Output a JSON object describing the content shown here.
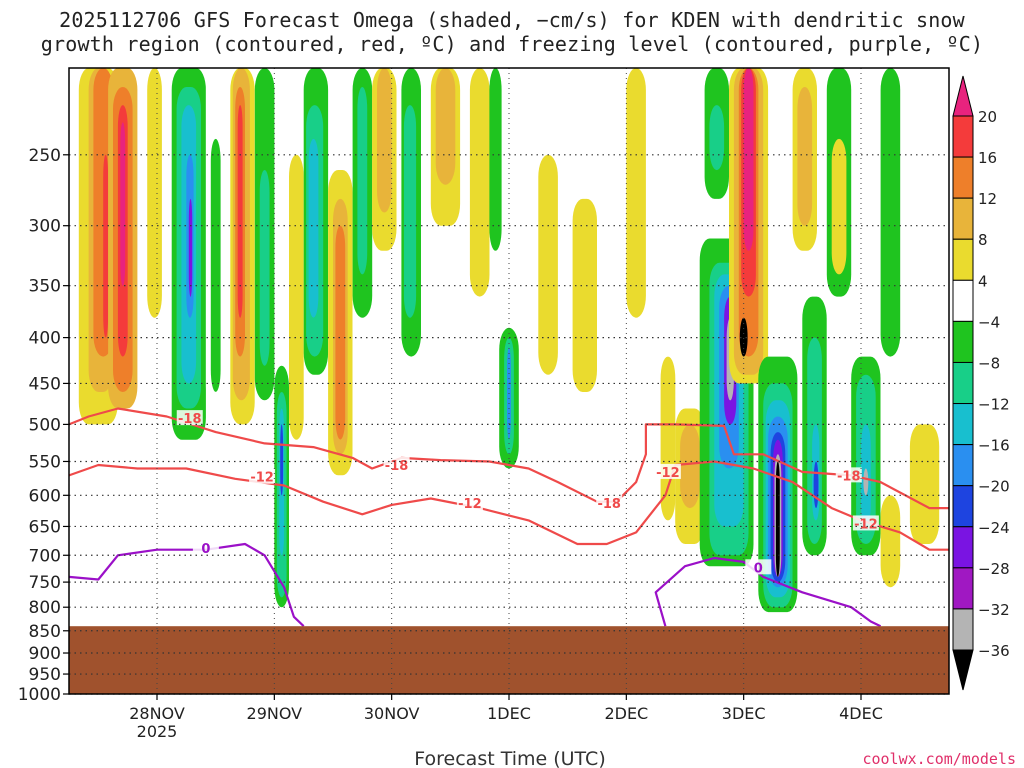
{
  "header": {
    "title_line_1": "2025112706 GFS Forecast Omega (shaded, −cm/s) for KDEN with dendritic snow",
    "title_line_2": "growth region (contoured, red, ºC) and freezing level (contoured, purple, ºC)"
  },
  "footer": {
    "xlabel": "Forecast Time (UTC)",
    "credit": "coolwx.com/models"
  },
  "colors": {
    "ground": "#a0522d",
    "dgz_contour": "#ef4a4a",
    "freezing_contour": "#9b10c8",
    "frame": "#000000"
  },
  "chart_data": {
    "type": "heatmap",
    "title": "2025112706 GFS Forecast Omega (shaded, −cm/s) for KDEN with dendritic snow growth region (contoured, red, ºC) and freezing level (contoured, purple, ºC)",
    "xlabel": "Forecast Time (UTC)",
    "ylabel": "",
    "y_scale": "log-pressure",
    "y_reversed": true,
    "ylim": [
      1000,
      200
    ],
    "xlim": [
      0,
      180
    ],
    "grid": true,
    "y_ticks": [
      "250",
      "300",
      "350",
      "400",
      "450",
      "500",
      "550",
      "600",
      "650",
      "700",
      "750",
      "800",
      "850",
      "900",
      "950",
      "1000"
    ],
    "x_ticks": [
      {
        "x": 18,
        "label": "28NOV",
        "sublabel": "2025"
      },
      {
        "x": 42,
        "label": "29NOV",
        "sublabel": ""
      },
      {
        "x": 66,
        "label": "30NOV",
        "sublabel": ""
      },
      {
        "x": 90,
        "label": "1DEC",
        "sublabel": ""
      },
      {
        "x": 114,
        "label": "2DEC",
        "sublabel": ""
      },
      {
        "x": 138,
        "label": "3DEC",
        "sublabel": ""
      },
      {
        "x": 162,
        "label": "4DEC",
        "sublabel": ""
      }
    ],
    "surface_pressure": 840,
    "colorbar": {
      "labels": [
        "20",
        "16",
        "12",
        "8",
        "4",
        "−4",
        "−8",
        "−12",
        "−16",
        "−20",
        "−24",
        "−28",
        "−32",
        "−36"
      ],
      "colors": [
        "#e8237e",
        "#f43b3b",
        "#ee7f2a",
        "#e8b43a",
        "#eadb2e",
        "#ffffff",
        "#1fc41f",
        "#18cf88",
        "#18bfcf",
        "#2a8ff0",
        "#1e44e0",
        "#7a14e2",
        "#a018c2",
        "#b4b4b4",
        "#000000"
      ]
    },
    "omega_cells": [
      {
        "x0": 2,
        "x1": 10,
        "p0": 200,
        "p1": 500,
        "cls": "4"
      },
      {
        "x0": 4,
        "x1": 9,
        "p0": 200,
        "p1": 460,
        "cls": "8"
      },
      {
        "x0": 5,
        "x1": 9,
        "p0": 200,
        "p1": 420,
        "cls": "12"
      },
      {
        "x0": 7,
        "x1": 8,
        "p0": 250,
        "p1": 400,
        "cls": "16"
      },
      {
        "x0": 8,
        "x1": 14,
        "p0": 200,
        "p1": 480,
        "cls": "8"
      },
      {
        "x0": 9,
        "x1": 13,
        "p0": 210,
        "p1": 460,
        "cls": "12"
      },
      {
        "x0": 10,
        "x1": 12,
        "p0": 220,
        "p1": 420,
        "cls": "16"
      },
      {
        "x0": 10.5,
        "x1": 11.5,
        "p0": 230,
        "p1": 350,
        "cls": "20"
      },
      {
        "x0": 16,
        "x1": 19,
        "p0": 200,
        "p1": 380,
        "cls": "4"
      },
      {
        "x0": 21,
        "x1": 28,
        "p0": 200,
        "p1": 520,
        "cls": "-8"
      },
      {
        "x0": 22,
        "x1": 27,
        "p0": 210,
        "p1": 480,
        "cls": "-12"
      },
      {
        "x0": 23,
        "x1": 26,
        "p0": 220,
        "p1": 450,
        "cls": "-16"
      },
      {
        "x0": 24,
        "x1": 25.5,
        "p0": 250,
        "p1": 380,
        "cls": "-20"
      },
      {
        "x0": 24.5,
        "x1": 25.2,
        "p0": 280,
        "p1": 360,
        "cls": "-28"
      },
      {
        "x0": 28,
        "x1": 32,
        "p0": 200,
        "p1": 480,
        "cls": "-4"
      },
      {
        "x0": 29,
        "x1": 31,
        "p0": 240,
        "p1": 460,
        "cls": "-8"
      },
      {
        "x0": 33,
        "x1": 38,
        "p0": 200,
        "p1": 500,
        "cls": "4"
      },
      {
        "x0": 33.5,
        "x1": 37,
        "p0": 200,
        "p1": 470,
        "cls": "8"
      },
      {
        "x0": 34,
        "x1": 36,
        "p0": 210,
        "p1": 420,
        "cls": "12"
      },
      {
        "x0": 34.5,
        "x1": 35.5,
        "p0": 220,
        "p1": 380,
        "cls": "16"
      },
      {
        "x0": 38,
        "x1": 42,
        "p0": 200,
        "p1": 470,
        "cls": "-8"
      },
      {
        "x0": 39,
        "x1": 41,
        "p0": 260,
        "p1": 430,
        "cls": "-12"
      },
      {
        "x0": 42,
        "x1": 45,
        "p0": 430,
        "p1": 800,
        "cls": "-8"
      },
      {
        "x0": 42.5,
        "x1": 44.5,
        "p0": 460,
        "p1": 780,
        "cls": "-12"
      },
      {
        "x0": 43,
        "x1": 44,
        "p0": 480,
        "p1": 700,
        "cls": "-16"
      },
      {
        "x0": 43.2,
        "x1": 43.8,
        "p0": 500,
        "p1": 600,
        "cls": "-24"
      },
      {
        "x0": 45,
        "x1": 48,
        "p0": 250,
        "p1": 520,
        "cls": "4"
      },
      {
        "x0": 48,
        "x1": 53,
        "p0": 200,
        "p1": 440,
        "cls": "-8"
      },
      {
        "x0": 48.5,
        "x1": 52,
        "p0": 220,
        "p1": 420,
        "cls": "-12"
      },
      {
        "x0": 49,
        "x1": 51,
        "p0": 240,
        "p1": 380,
        "cls": "-16"
      },
      {
        "x0": 53,
        "x1": 58,
        "p0": 260,
        "p1": 570,
        "cls": "4"
      },
      {
        "x0": 54,
        "x1": 57,
        "p0": 280,
        "p1": 540,
        "cls": "8"
      },
      {
        "x0": 54.5,
        "x1": 56.5,
        "p0": 300,
        "p1": 520,
        "cls": "12"
      },
      {
        "x0": 58,
        "x1": 62,
        "p0": 200,
        "p1": 380,
        "cls": "-8"
      },
      {
        "x0": 59,
        "x1": 61,
        "p0": 210,
        "p1": 340,
        "cls": "-12"
      },
      {
        "x0": 62,
        "x1": 67,
        "p0": 200,
        "p1": 320,
        "cls": "4"
      },
      {
        "x0": 63,
        "x1": 66,
        "p0": 200,
        "p1": 290,
        "cls": "8"
      },
      {
        "x0": 68,
        "x1": 72,
        "p0": 200,
        "p1": 420,
        "cls": "-8"
      },
      {
        "x0": 68.5,
        "x1": 71,
        "p0": 220,
        "p1": 380,
        "cls": "-12"
      },
      {
        "x0": 74,
        "x1": 80,
        "p0": 200,
        "p1": 300,
        "cls": "4"
      },
      {
        "x0": 75,
        "x1": 79,
        "p0": 200,
        "p1": 270,
        "cls": "8"
      },
      {
        "x0": 82,
        "x1": 86,
        "p0": 200,
        "p1": 360,
        "cls": "4"
      },
      {
        "x0": 86,
        "x1": 88.5,
        "p0": 200,
        "p1": 320,
        "cls": "-8"
      },
      {
        "x0": 88,
        "x1": 92,
        "p0": 390,
        "p1": 560,
        "cls": "-8"
      },
      {
        "x0": 89,
        "x1": 91,
        "p0": 400,
        "p1": 540,
        "cls": "-12"
      },
      {
        "x0": 89.6,
        "x1": 90.4,
        "p0": 410,
        "p1": 520,
        "cls": "-20"
      },
      {
        "x0": 96,
        "x1": 100,
        "p0": 250,
        "p1": 440,
        "cls": "4"
      },
      {
        "x0": 103,
        "x1": 108,
        "p0": 280,
        "p1": 460,
        "cls": "4"
      },
      {
        "x0": 114,
        "x1": 118,
        "p0": 200,
        "p1": 380,
        "cls": "4"
      },
      {
        "x0": 121,
        "x1": 124,
        "p0": 420,
        "p1": 640,
        "cls": "4"
      },
      {
        "x0": 124,
        "x1": 130,
        "p0": 480,
        "p1": 680,
        "cls": "4"
      },
      {
        "x0": 125,
        "x1": 129,
        "p0": 500,
        "p1": 620,
        "cls": "8"
      },
      {
        "x0": 129,
        "x1": 140,
        "p0": 310,
        "p1": 720,
        "cls": "-8"
      },
      {
        "x0": 131,
        "x1": 139,
        "p0": 330,
        "p1": 700,
        "cls": "-12"
      },
      {
        "x0": 132,
        "x1": 138,
        "p0": 340,
        "p1": 650,
        "cls": "-16"
      },
      {
        "x0": 133,
        "x1": 137,
        "p0": 350,
        "p1": 560,
        "cls": "-20"
      },
      {
        "x0": 134,
        "x1": 136.5,
        "p0": 360,
        "p1": 500,
        "cls": "-28"
      },
      {
        "x0": 134.5,
        "x1": 136,
        "p0": 380,
        "p1": 470,
        "cls": "-32"
      },
      {
        "x0": 130,
        "x1": 135,
        "p0": 200,
        "p1": 280,
        "cls": "-8"
      },
      {
        "x0": 131,
        "x1": 134,
        "p0": 220,
        "p1": 260,
        "cls": "-12"
      },
      {
        "x0": 135,
        "x1": 143,
        "p0": 200,
        "p1": 450,
        "cls": "4"
      },
      {
        "x0": 136,
        "x1": 142,
        "p0": 200,
        "p1": 440,
        "cls": "8"
      },
      {
        "x0": 137,
        "x1": 141,
        "p0": 200,
        "p1": 420,
        "cls": "12"
      },
      {
        "x0": 137.5,
        "x1": 140.5,
        "p0": 200,
        "p1": 360,
        "cls": "16"
      },
      {
        "x0": 138,
        "x1": 140,
        "p0": 200,
        "p1": 320,
        "cls": "20"
      },
      {
        "x0": 137.2,
        "x1": 138.8,
        "p0": 380,
        "p1": 420,
        "cls": "-36"
      },
      {
        "x0": 141,
        "x1": 149,
        "p0": 420,
        "p1": 810,
        "cls": "-8"
      },
      {
        "x0": 142,
        "x1": 148,
        "p0": 450,
        "p1": 800,
        "cls": "-12"
      },
      {
        "x0": 142.5,
        "x1": 147.5,
        "p0": 470,
        "p1": 780,
        "cls": "-16"
      },
      {
        "x0": 143,
        "x1": 147,
        "p0": 490,
        "p1": 760,
        "cls": "-20"
      },
      {
        "x0": 143.5,
        "x1": 146.5,
        "p0": 510,
        "p1": 750,
        "cls": "-24"
      },
      {
        "x0": 144,
        "x1": 146,
        "p0": 520,
        "p1": 740,
        "cls": "-28"
      },
      {
        "x0": 144.3,
        "x1": 145.7,
        "p0": 540,
        "p1": 740,
        "cls": "-32"
      },
      {
        "x0": 144.6,
        "x1": 145.4,
        "p0": 550,
        "p1": 740,
        "cls": "-36"
      },
      {
        "x0": 148,
        "x1": 153,
        "p0": 200,
        "p1": 320,
        "cls": "4"
      },
      {
        "x0": 149,
        "x1": 152,
        "p0": 210,
        "p1": 300,
        "cls": "8"
      },
      {
        "x0": 150,
        "x1": 155,
        "p0": 360,
        "p1": 700,
        "cls": "-8"
      },
      {
        "x0": 151,
        "x1": 154,
        "p0": 400,
        "p1": 680,
        "cls": "-12"
      },
      {
        "x0": 152,
        "x1": 153.5,
        "p0": 500,
        "p1": 640,
        "cls": "-16"
      },
      {
        "x0": 152.3,
        "x1": 153.3,
        "p0": 550,
        "p1": 620,
        "cls": "-24"
      },
      {
        "x0": 155,
        "x1": 160,
        "p0": 200,
        "p1": 360,
        "cls": "-8"
      },
      {
        "x0": 156,
        "x1": 159,
        "p0": 240,
        "p1": 340,
        "cls": "4"
      },
      {
        "x0": 160,
        "x1": 166,
        "p0": 420,
        "p1": 700,
        "cls": "-8"
      },
      {
        "x0": 161,
        "x1": 165,
        "p0": 440,
        "p1": 680,
        "cls": "-12"
      },
      {
        "x0": 162,
        "x1": 164,
        "p0": 500,
        "p1": 650,
        "cls": "-16"
      },
      {
        "x0": 162.5,
        "x1": 163.5,
        "p0": 560,
        "p1": 600,
        "cls": "-32"
      },
      {
        "x0": 166,
        "x1": 170,
        "p0": 200,
        "p1": 420,
        "cls": "-8"
      },
      {
        "x0": 166,
        "x1": 170,
        "p0": 600,
        "p1": 760,
        "cls": "4"
      },
      {
        "x0": 172,
        "x1": 178,
        "p0": 500,
        "p1": 680,
        "cls": "4"
      }
    ],
    "contours": [
      {
        "name": "-18",
        "color": "dgz",
        "label_x": 25,
        "label_p": 490,
        "points": [
          [
            0,
            500
          ],
          [
            4,
            490
          ],
          [
            10,
            480
          ],
          [
            20,
            490
          ],
          [
            30,
            510
          ],
          [
            40,
            525
          ],
          [
            50,
            530
          ],
          [
            58,
            545
          ],
          [
            62,
            560
          ],
          [
            68,
            545
          ],
          [
            76,
            548
          ],
          [
            86,
            550
          ],
          [
            94,
            560
          ],
          [
            100,
            580
          ],
          [
            108,
            610
          ],
          [
            112,
            610
          ],
          [
            116,
            580
          ],
          [
            118,
            540
          ],
          [
            118,
            500
          ],
          [
            124,
            500
          ],
          [
            134,
            502
          ],
          [
            136,
            540
          ],
          [
            142,
            540
          ],
          [
            150,
            565
          ],
          [
            160,
            570
          ],
          [
            166,
            580
          ],
          [
            176,
            620
          ],
          [
            180,
            620
          ]
        ]
      },
      {
        "name": "-12",
        "color": "dgz",
        "label_x": 40,
        "label_p": 570,
        "points": [
          [
            0,
            570
          ],
          [
            6,
            555
          ],
          [
            14,
            560
          ],
          [
            24,
            560
          ],
          [
            34,
            575
          ],
          [
            44,
            585
          ],
          [
            52,
            610
          ],
          [
            60,
            630
          ],
          [
            66,
            615
          ],
          [
            74,
            605
          ],
          [
            84,
            620
          ],
          [
            94,
            640
          ],
          [
            104,
            680
          ],
          [
            110,
            680
          ],
          [
            116,
            660
          ],
          [
            122,
            600
          ],
          [
            124,
            555
          ],
          [
            132,
            550
          ],
          [
            140,
            560
          ],
          [
            148,
            580
          ],
          [
            156,
            620
          ],
          [
            162,
            640
          ],
          [
            170,
            660
          ],
          [
            176,
            690
          ],
          [
            180,
            690
          ]
        ]
      },
      {
        "name": "0",
        "color": "fz",
        "label_x": 28,
        "label_p": 690,
        "points": [
          [
            0,
            740
          ],
          [
            6,
            745
          ],
          [
            10,
            700
          ],
          [
            18,
            690
          ],
          [
            28,
            690
          ],
          [
            36,
            680
          ],
          [
            40,
            700
          ],
          [
            44,
            760
          ],
          [
            46,
            820
          ],
          [
            48,
            840
          ]
        ]
      },
      {
        "name": "0",
        "color": "fz",
        "label_x": 140,
        "label_p": 710,
        "points": [
          [
            122,
            840
          ],
          [
            120,
            770
          ],
          [
            126,
            720
          ],
          [
            132,
            705
          ],
          [
            138,
            712
          ],
          [
            142,
            740
          ],
          [
            150,
            770
          ],
          [
            160,
            800
          ],
          [
            164,
            830
          ],
          [
            166,
            840
          ]
        ]
      }
    ],
    "contour_labels": [
      {
        "text": "-18",
        "x": 24.7,
        "p": 492,
        "color": "dgz"
      },
      {
        "text": "-18",
        "x": 67,
        "p": 555,
        "color": "dgz"
      },
      {
        "text": "-18",
        "x": 110.5,
        "p": 612,
        "color": "dgz"
      },
      {
        "text": "-18",
        "x": 159.5,
        "p": 570,
        "color": "dgz"
      },
      {
        "text": "-12",
        "x": 39.5,
        "p": 572,
        "color": "dgz"
      },
      {
        "text": "-12",
        "x": 82,
        "p": 612,
        "color": "dgz"
      },
      {
        "text": "-12",
        "x": 122.5,
        "p": 565,
        "color": "dgz"
      },
      {
        "text": "-12",
        "x": 163,
        "p": 645,
        "color": "dgz"
      },
      {
        "text": "0",
        "x": 28,
        "p": 687,
        "color": "fz"
      },
      {
        "text": "0",
        "x": 141,
        "p": 722,
        "color": "fz"
      }
    ]
  }
}
